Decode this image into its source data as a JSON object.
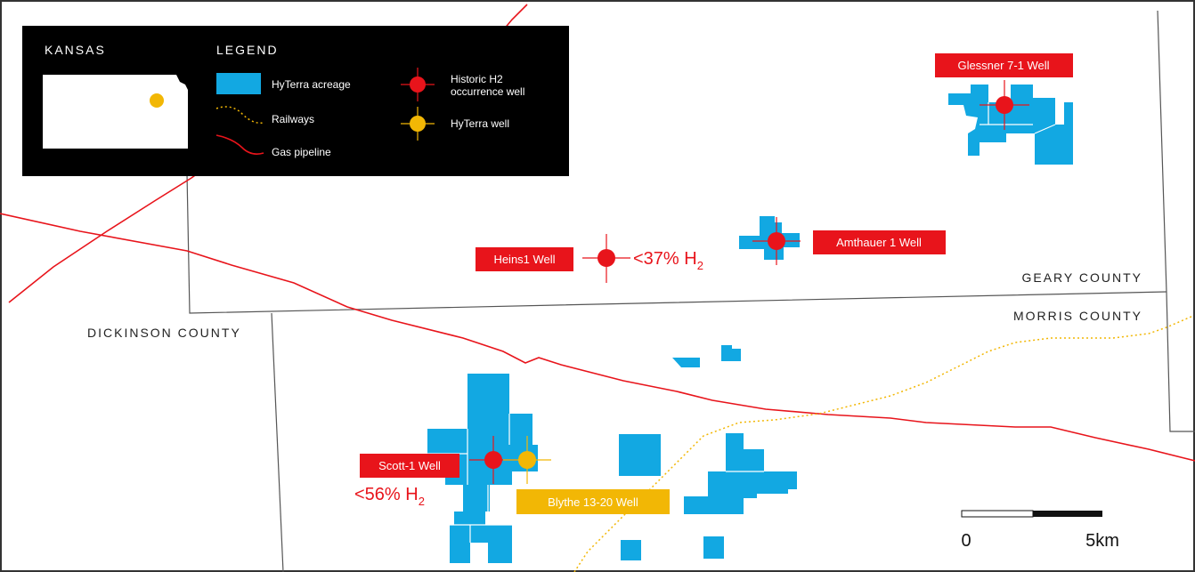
{
  "counties": {
    "geary": "GEARY COUNTY",
    "morris": "MORRIS COUNTY",
    "dickinson": "DICKINSON COUNTY"
  },
  "wells": {
    "glessner": {
      "name": "Glessner 7-1 Well",
      "type": "historic"
    },
    "amthauer": {
      "name": "Amthauer 1 Well",
      "type": "historic"
    },
    "heins": {
      "name": "Heins1 Well",
      "type": "historic",
      "h2_main": "<37% H",
      "h2_sub": "2"
    },
    "scott": {
      "name": "Scott-1 Well",
      "type": "historic",
      "h2_main": "<56% H",
      "h2_sub": "2"
    },
    "blythe": {
      "name": "Blythe 13-20 Well",
      "type": "hyterra"
    }
  },
  "legend": {
    "inset_title": "KANSAS",
    "title": "LEGEND",
    "items": {
      "acreage": "HyTerra acreage",
      "railways": "Railways",
      "pipeline": "Gas pipeline",
      "historic_line1": "Historic H2",
      "historic_line2": "occurrence well",
      "hyterra_well": "HyTerra well"
    }
  },
  "scale": {
    "start": "0",
    "end": "5km"
  },
  "colors": {
    "acreage": "#12a8e2",
    "historic_well": "#e8141b",
    "hyterra_well": "#f2b705",
    "pipeline": "#e8141b",
    "railway": "#f2b705",
    "legend_bg": "#000000"
  }
}
